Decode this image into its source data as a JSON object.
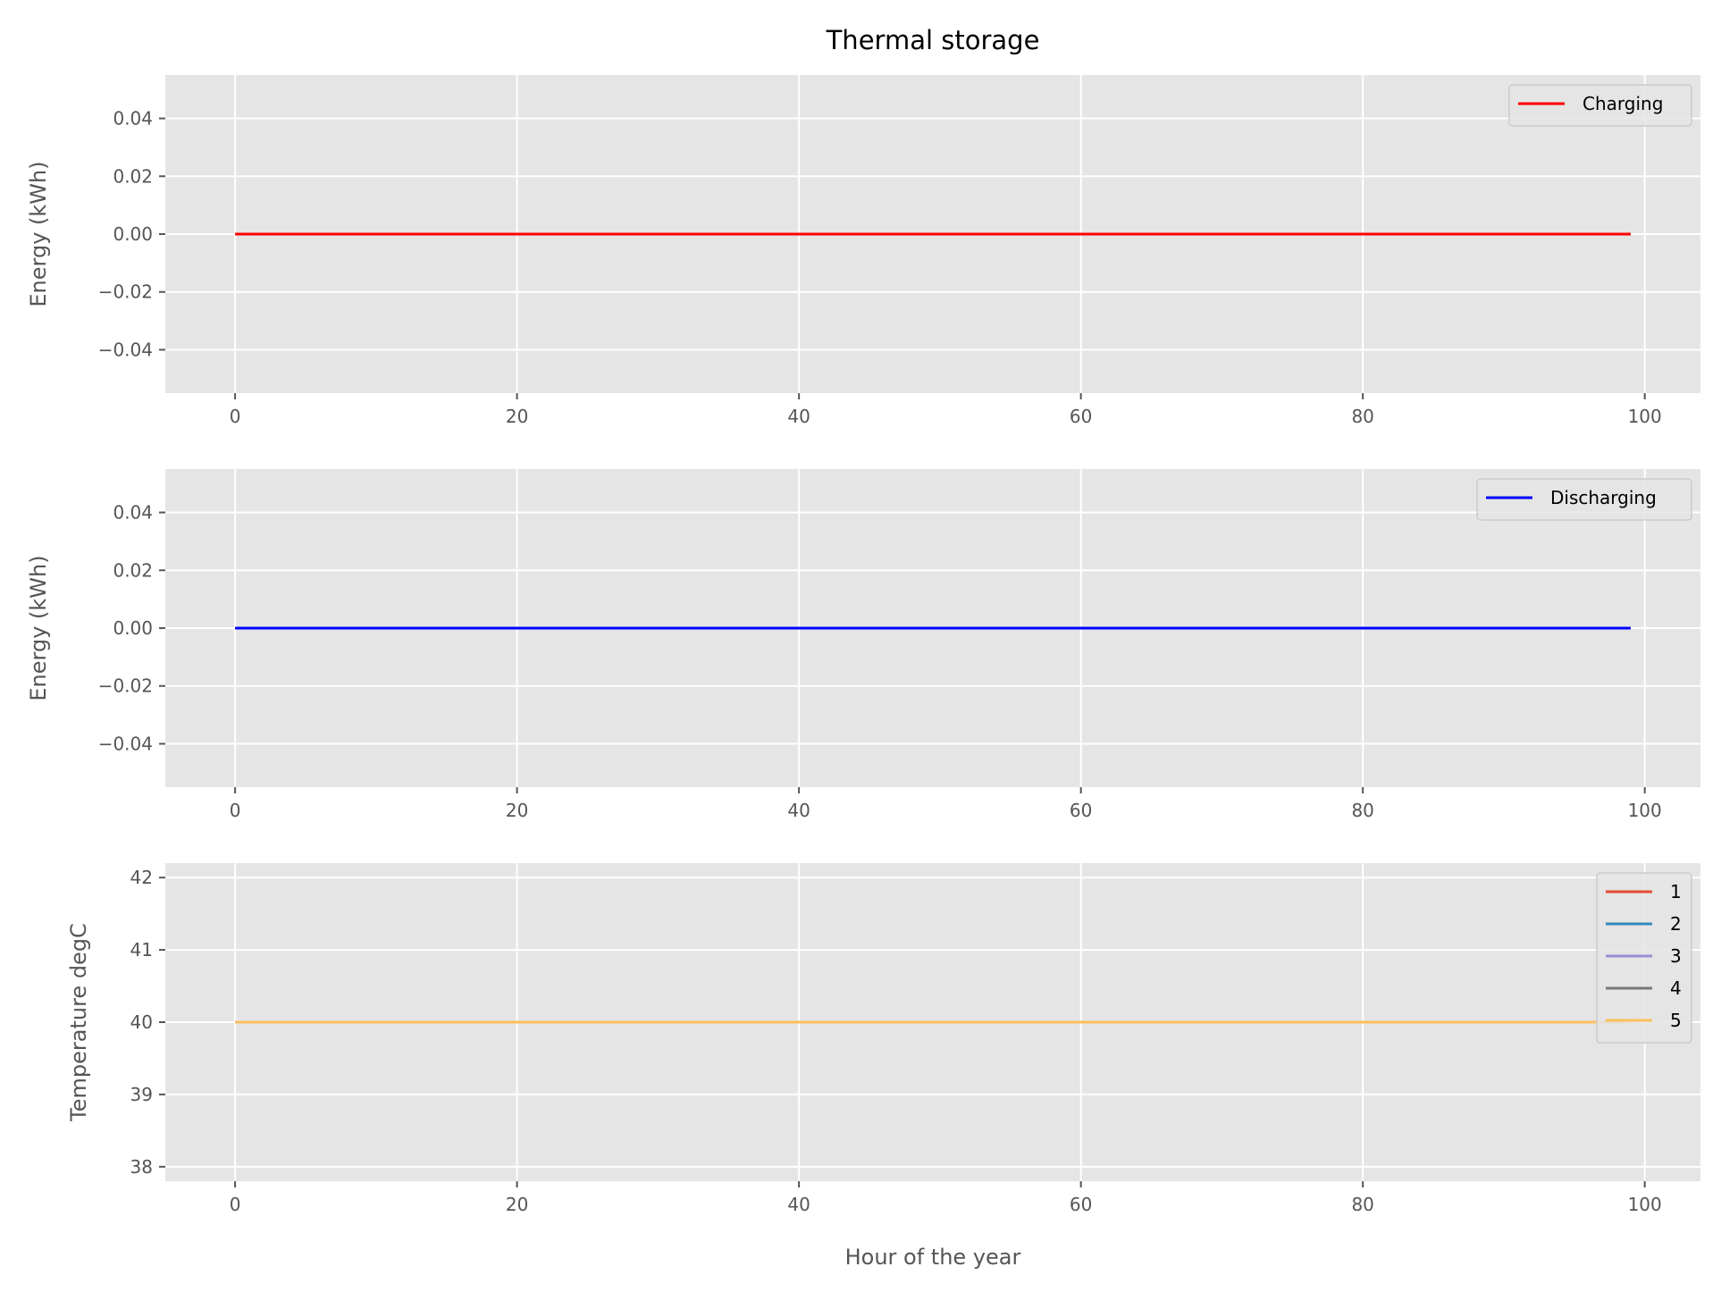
{
  "figure": {
    "title": "Thermal storage"
  },
  "chart_data": [
    {
      "type": "line",
      "ylabel": "Energy (kWh)",
      "xlabel": "",
      "xlim": [
        -4.95,
        103.95
      ],
      "ylim": [
        -0.055,
        0.055
      ],
      "xticks": [
        0,
        20,
        40,
        60,
        80,
        100
      ],
      "yticks": [
        -0.04,
        -0.02,
        0.0,
        0.02,
        0.04
      ],
      "ytick_labels": [
        "−0.04",
        "−0.02",
        "0.00",
        "0.02",
        "0.04"
      ],
      "grid": true,
      "legend_position": "upper right",
      "series": [
        {
          "name": "Charging",
          "color": "#ff0000",
          "x": [
            0,
            99
          ],
          "y": [
            0.0,
            0.0
          ]
        }
      ]
    },
    {
      "type": "line",
      "ylabel": "Energy (kWh)",
      "xlabel": "",
      "xlim": [
        -4.95,
        103.95
      ],
      "ylim": [
        -0.055,
        0.055
      ],
      "xticks": [
        0,
        20,
        40,
        60,
        80,
        100
      ],
      "yticks": [
        -0.04,
        -0.02,
        0.0,
        0.02,
        0.04
      ],
      "ytick_labels": [
        "−0.04",
        "−0.02",
        "0.00",
        "0.02",
        "0.04"
      ],
      "grid": true,
      "legend_position": "upper right",
      "series": [
        {
          "name": "Discharging",
          "color": "#0000ff",
          "x": [
            0,
            99
          ],
          "y": [
            0.0,
            0.0
          ]
        }
      ]
    },
    {
      "type": "line",
      "ylabel": "Temperature degC",
      "xlabel": "Hour of the year",
      "xlim": [
        -4.95,
        103.95
      ],
      "ylim": [
        37.8,
        42.2
      ],
      "xticks": [
        0,
        20,
        40,
        60,
        80,
        100
      ],
      "yticks": [
        38,
        39,
        40,
        41,
        42
      ],
      "ytick_labels": [
        "38",
        "39",
        "40",
        "41",
        "42"
      ],
      "grid": true,
      "legend_position": "upper right",
      "series": [
        {
          "name": "1",
          "color": "#e24a33",
          "x": [
            0,
            99
          ],
          "y": [
            40,
            40
          ]
        },
        {
          "name": "2",
          "color": "#348abd",
          "x": [
            0,
            99
          ],
          "y": [
            40,
            40
          ]
        },
        {
          "name": "3",
          "color": "#988ed5",
          "x": [
            0,
            99
          ],
          "y": [
            40,
            40
          ]
        },
        {
          "name": "4",
          "color": "#777777",
          "x": [
            0,
            99
          ],
          "y": [
            40,
            40
          ]
        },
        {
          "name": "5",
          "color": "#fbc15e",
          "x": [
            0,
            99
          ],
          "y": [
            40,
            40
          ]
        }
      ]
    }
  ]
}
